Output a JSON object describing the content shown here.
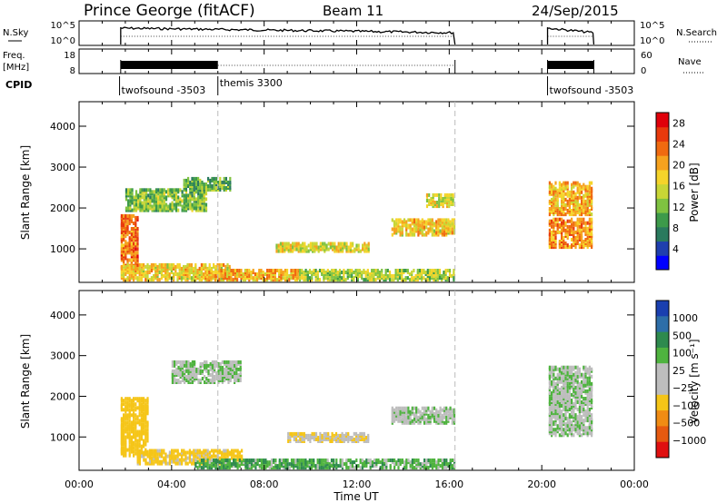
{
  "header": {
    "station": "Prince George (fitACF)",
    "beam": "Beam 11",
    "date": "24/Sep/2015"
  },
  "nsky_panel": {
    "left_label": "N.Sky",
    "left_ticks": [
      "10^5",
      "10^0"
    ],
    "right_ticks": [
      "10^5",
      "10^0"
    ],
    "right_label": "N.Search"
  },
  "freq_panel": {
    "left_label_1": "Freq.",
    "left_label_2": "[MHz]",
    "left_ticks": [
      "18",
      "8"
    ],
    "right_ticks": [
      "60",
      "0"
    ],
    "right_label": "Nave"
  },
  "cpid": {
    "label": "CPID",
    "modes": [
      {
        "name": "twofsound -3503",
        "start_h": 1.75
      },
      {
        "name": "themis 3300",
        "start_h": 6.0
      },
      {
        "name": "twofsound -3503",
        "start_h": 20.25
      }
    ]
  },
  "colors": {
    "power_scale": [
      "#0000ff",
      "#1f3fae",
      "#2a7a5e",
      "#3d9a4a",
      "#7fc241",
      "#c8d636",
      "#f5d42a",
      "#f6a21e",
      "#f06a10",
      "#e83a0c",
      "#e0000a"
    ],
    "velocity_scale": [
      "#1a3fb0",
      "#2d6ea8",
      "#2e8a4e",
      "#4fb33f",
      "#bdbdbd",
      "#bdbdbd",
      "#f5c518",
      "#f08c14",
      "#e65a10",
      "#e01010"
    ]
  },
  "chart_data": [
    {
      "type": "heatmap",
      "title": "",
      "quantity": "Power",
      "xlabel": "",
      "ylabel": "Slant Range [km]",
      "xlim_hours": [
        0,
        24
      ],
      "ylim_km": [
        180,
        4600
      ],
      "y_ticks": [
        "1000",
        "2000",
        "3000",
        "4000"
      ],
      "colorbar_label": "Power [dB]",
      "colorbar_ticks": [
        "4",
        "8",
        "12",
        "16",
        "20",
        "24",
        "28"
      ],
      "colorbar_range": [
        0,
        30
      ],
      "regions": [
        {
          "t0": 1.8,
          "t1": 2.5,
          "r0": 500,
          "r1": 1800,
          "level": 24
        },
        {
          "t0": 1.8,
          "t1": 6.5,
          "r0": 200,
          "r1": 600,
          "level": 18
        },
        {
          "t0": 2.0,
          "t1": 5.5,
          "r0": 1900,
          "r1": 2400,
          "level": 12
        },
        {
          "t0": 4.5,
          "t1": 6.5,
          "r0": 2400,
          "r1": 2700,
          "level": 10
        },
        {
          "t0": 5.5,
          "t1": 9.5,
          "r0": 200,
          "r1": 450,
          "level": 20
        },
        {
          "t0": 9.5,
          "t1": 16.2,
          "r0": 200,
          "r1": 450,
          "level": 14
        },
        {
          "t0": 8.5,
          "t1": 12.5,
          "r0": 900,
          "r1": 1100,
          "level": 16
        },
        {
          "t0": 13.5,
          "t1": 16.2,
          "r0": 1300,
          "r1": 1700,
          "level": 18
        },
        {
          "t0": 15.0,
          "t1": 16.2,
          "r0": 2000,
          "r1": 2300,
          "level": 16
        },
        {
          "t0": 20.3,
          "t1": 22.2,
          "r0": 1800,
          "r1": 2600,
          "level": 20
        },
        {
          "t0": 20.3,
          "t1": 22.2,
          "r0": 1000,
          "r1": 1700,
          "level": 22
        }
      ]
    },
    {
      "type": "heatmap",
      "title": "",
      "quantity": "Velocity",
      "xlabel": "Time UT",
      "ylabel": "Slant Range [km]",
      "xlim_hours": [
        0,
        24
      ],
      "ylim_km": [
        180,
        4600
      ],
      "x_ticks": [
        "00:00",
        "04:00",
        "08:00",
        "12:00",
        "16:00",
        "20:00",
        "00:00"
      ],
      "y_ticks": [
        "1000",
        "2000",
        "3000",
        "4000"
      ],
      "colorbar_label": "Velocity [m s⁻¹]",
      "colorbar_ticks": [
        "1000",
        "500",
        "100",
        "25",
        "−25",
        "−100",
        "−500",
        "−1000"
      ],
      "regions": [
        {
          "t0": 1.8,
          "t1": 3.0,
          "r0": 500,
          "r1": 1900,
          "velocity": -300
        },
        {
          "t0": 2.5,
          "t1": 7.0,
          "r0": 300,
          "r1": 650,
          "velocity": -150
        },
        {
          "t0": 5.0,
          "t1": 11.0,
          "r0": 200,
          "r1": 400,
          "velocity": 80
        },
        {
          "t0": 4.0,
          "t1": 7.0,
          "r0": 2300,
          "r1": 2800,
          "velocity": 0
        },
        {
          "t0": 9.0,
          "t1": 12.5,
          "r0": 850,
          "r1": 1050,
          "velocity": -80
        },
        {
          "t0": 11.0,
          "t1": 16.2,
          "r0": 200,
          "r1": 400,
          "velocity": 60
        },
        {
          "t0": 13.5,
          "t1": 16.2,
          "r0": 1300,
          "r1": 1700,
          "velocity": 0
        },
        {
          "t0": 20.3,
          "t1": 22.2,
          "r0": 1000,
          "r1": 2700,
          "velocity": 0
        }
      ]
    }
  ]
}
